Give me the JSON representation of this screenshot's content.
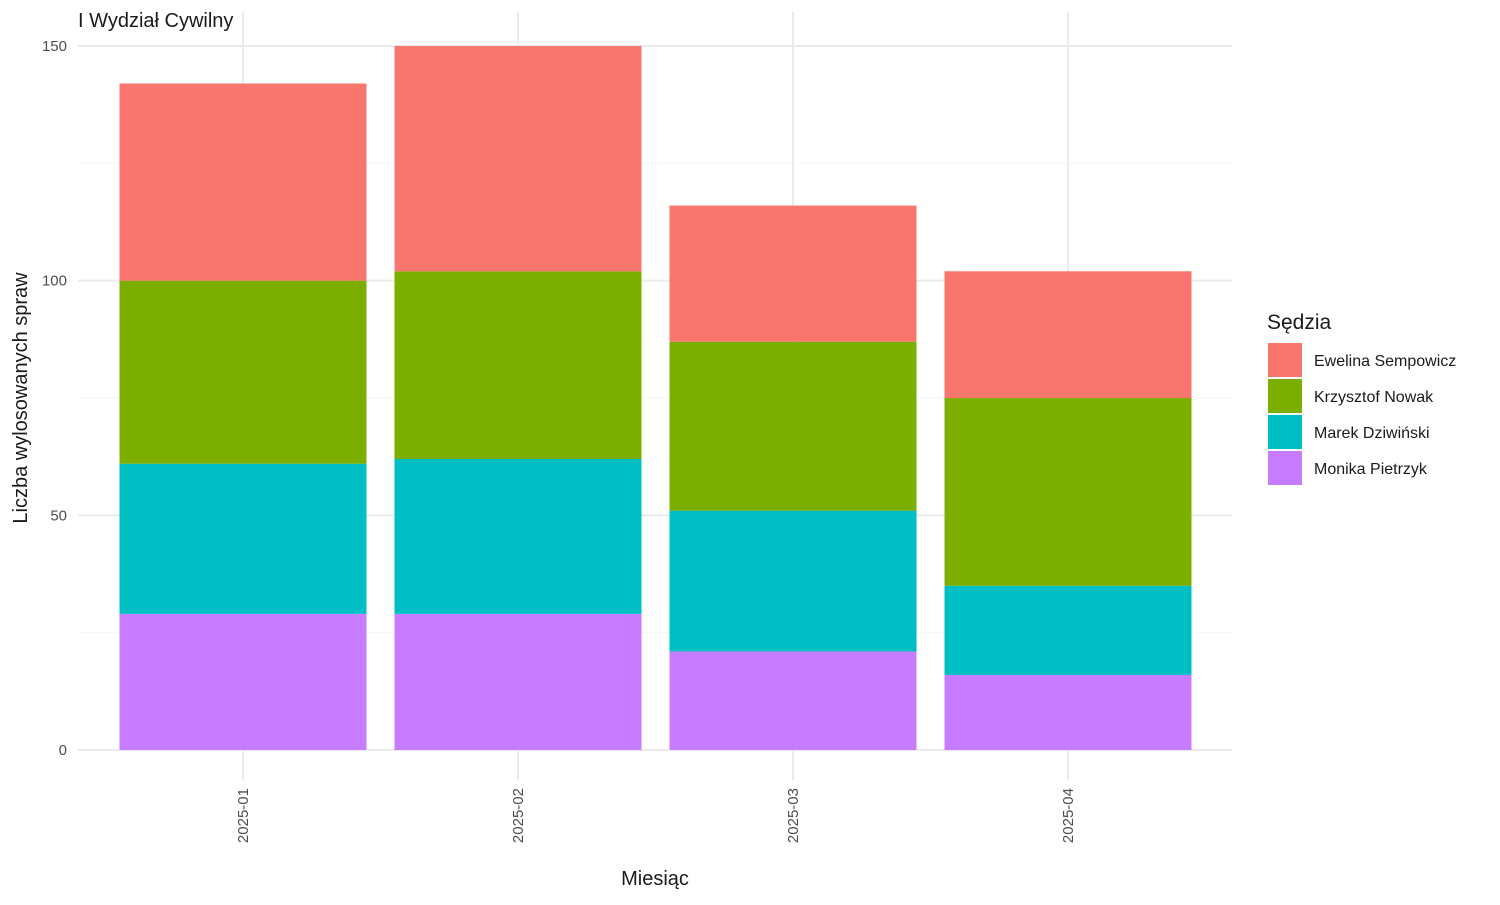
{
  "chart_data": {
    "type": "bar",
    "stacked": true,
    "title": "I Wydział Cywilny",
    "xlabel": "Miesiąc",
    "ylabel": "Liczba wylosowanych spraw",
    "ylim": [
      0,
      150
    ],
    "yticks": [
      0,
      50,
      100,
      150
    ],
    "grid": true,
    "legend": {
      "title": "Sędzia",
      "position": "right"
    },
    "categories": [
      "2025-01",
      "2025-02",
      "2025-03",
      "2025-04"
    ],
    "series": [
      {
        "name": "Monika Pietrzyk",
        "color": "#C77CFF",
        "values": [
          29,
          29,
          21,
          16
        ]
      },
      {
        "name": "Marek Dziwiński",
        "color": "#00BFC4",
        "values": [
          32,
          33,
          30,
          19
        ]
      },
      {
        "name": "Krzysztof Nowak",
        "color": "#7CAE00",
        "values": [
          39,
          40,
          36,
          40
        ]
      },
      {
        "name": "Ewelina Sempowicz",
        "color": "#F8766D",
        "values": [
          42,
          48,
          29,
          27
        ]
      }
    ]
  }
}
